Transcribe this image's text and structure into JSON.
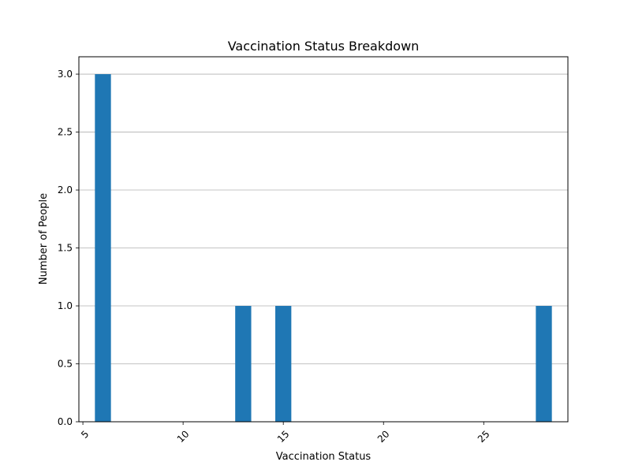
{
  "chart_data": {
    "type": "bar",
    "title": "Vaccination Status Breakdown",
    "xlabel": "Vaccination Status",
    "ylabel": "Number of People",
    "xlim": [
      4.8,
      29.2
    ],
    "ylim": [
      0,
      3.15
    ],
    "x_ticks": [
      5,
      10,
      15,
      20,
      25
    ],
    "y_ticks": [
      0.0,
      0.5,
      1.0,
      1.5,
      2.0,
      2.5,
      3.0
    ],
    "y_tick_labels": [
      "0.0",
      "0.5",
      "1.0",
      "1.5",
      "2.0",
      "2.5",
      "3.0"
    ],
    "x_tick_labels": [
      "5",
      "10",
      "15",
      "20",
      "25"
    ],
    "x_tick_rotation_deg": -45,
    "bars": [
      {
        "x_start": 5.6,
        "x_end": 6.4,
        "value": 3
      },
      {
        "x_start": 12.6,
        "x_end": 13.4,
        "value": 1
      },
      {
        "x_start": 14.6,
        "x_end": 15.4,
        "value": 1
      },
      {
        "x_start": 27.6,
        "x_end": 28.4,
        "value": 1
      }
    ],
    "grid": {
      "y": true,
      "x": false
    },
    "bar_color": "#1f77b4"
  }
}
